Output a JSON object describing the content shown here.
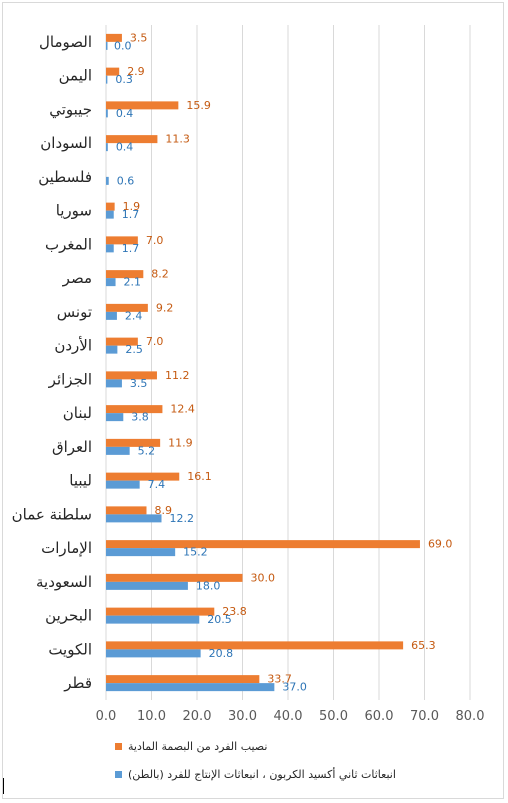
{
  "chart_data": {
    "type": "bar",
    "orientation": "horizontal",
    "categories": [
      "الصومال",
      "اليمن",
      "جيبوتي",
      "السودان",
      "فلسطين",
      "سوريا",
      "المغرب",
      "مصر",
      "تونس",
      "الأردن",
      "الجزائر",
      "لبنان",
      "العراق",
      "ليبيا",
      "سلطنة عمان",
      "الإمارات",
      "السعودية",
      "البحرين",
      "الكويت",
      "قطر"
    ],
    "series": [
      {
        "name": "نصيب الفرد من البصمة المادية",
        "color": "#ED7D31",
        "label_color": "#C55A11",
        "values": [
          3.5,
          2.9,
          15.9,
          11.3,
          null,
          1.9,
          7.0,
          8.2,
          9.2,
          7.0,
          11.2,
          12.4,
          11.9,
          16.1,
          8.9,
          69.0,
          30.0,
          23.8,
          65.3,
          33.7
        ],
        "labels": [
          "3.5",
          "2.9",
          "15.9",
          "11.3",
          "",
          "1.9",
          "7.0",
          "8.2",
          "9.2",
          "7.0",
          "11.2",
          "12.4",
          "11.9",
          "16.1",
          "8.9",
          "69.0",
          "30.0",
          "23.8",
          "65.3",
          "33.7"
        ]
      },
      {
        "name": "انبعاثات ثاني أكسيد الكربون ، انبعاثات الإنتاج للفرد (بالطن)",
        "color": "#5B9BD5",
        "label_color": "#2E75B6",
        "values": [
          0.0,
          0.3,
          0.4,
          0.4,
          0.6,
          1.7,
          1.7,
          2.1,
          2.4,
          2.5,
          3.5,
          3.8,
          5.2,
          7.4,
          12.2,
          15.2,
          18.0,
          20.5,
          20.8,
          37.0
        ],
        "labels": [
          "0.0",
          "0.3",
          "0.4",
          "0.4",
          "0.6",
          "1.7",
          "1.7",
          "2.1",
          "2.4",
          "2.5",
          "3.5",
          "3.8",
          "5.2",
          "7.4",
          "12.2",
          "15.2",
          "18.0",
          "20.5",
          "20.8",
          "37.0"
        ]
      }
    ],
    "xlim": [
      0,
      80
    ],
    "x_ticks": [
      "0.0",
      "10.0",
      "20.0",
      "30.0",
      "40.0",
      "50.0",
      "60.0",
      "70.0",
      "80.0"
    ],
    "grid": true,
    "legend_position": "bottom"
  }
}
